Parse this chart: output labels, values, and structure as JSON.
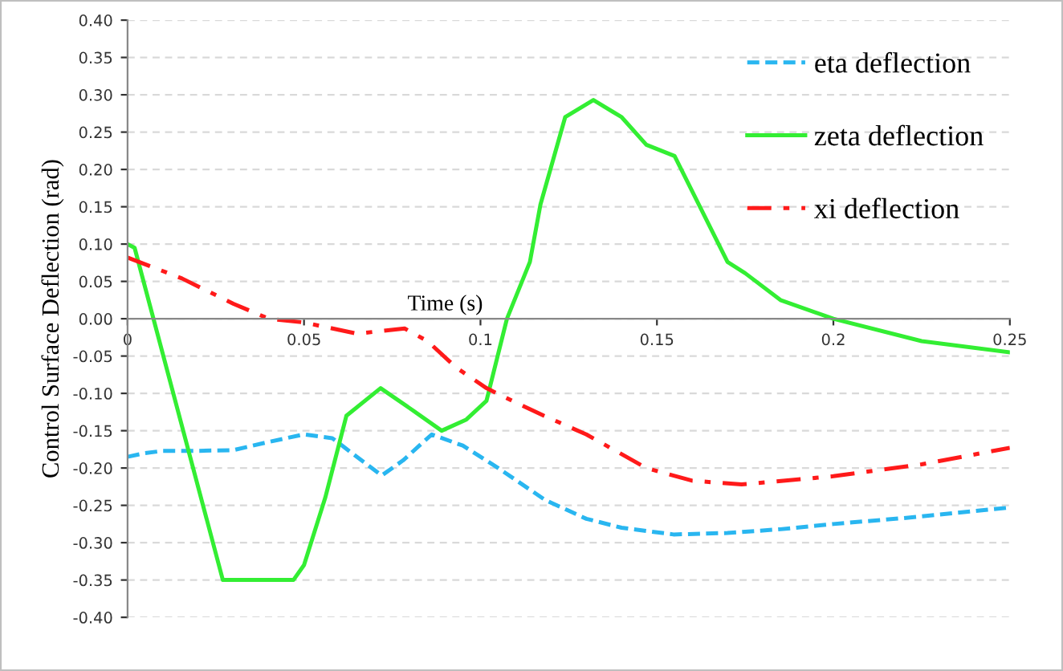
{
  "chart_data": {
    "type": "line",
    "xlabel": "Time (s)",
    "ylabel": "Control Surface Deflection (rad)",
    "xlim": [
      0,
      0.25
    ],
    "xticks": [
      0,
      0.05,
      {
        "value": 0.1,
        "label": "0.1"
      },
      0.15,
      {
        "value": 0.2,
        "label": "0.2"
      },
      0.25
    ],
    "ylim": [
      -0.4,
      0.4
    ],
    "yticks": [
      {
        "value": -0.4,
        "label": "-0.40"
      },
      {
        "value": -0.35,
        "label": "-0.35"
      },
      {
        "value": -0.3,
        "label": "-0.30"
      },
      {
        "value": -0.25,
        "label": "-0.25"
      },
      {
        "value": -0.2,
        "label": "-0.20"
      },
      {
        "value": -0.15,
        "label": "-0.15"
      },
      {
        "value": -0.1,
        "label": "-0.10"
      },
      {
        "value": -0.05,
        "label": "-0.05"
      },
      {
        "value": 0,
        "label": "0.00"
      },
      {
        "value": 0.05,
        "label": "0.05"
      },
      {
        "value": 0.1,
        "label": "0.10"
      },
      {
        "value": 0.15,
        "label": "0.15"
      },
      {
        "value": 0.2,
        "label": "0.20"
      },
      {
        "value": 0.25,
        "label": "0.25"
      },
      {
        "value": 0.3,
        "label": "0.30"
      },
      {
        "value": 0.35,
        "label": "0.35"
      },
      {
        "value": 0.4,
        "label": "0.40"
      }
    ],
    "grid": "y",
    "legend": "top right",
    "marker": "none",
    "series": [
      {
        "name": "eta deflection",
        "color": "#29b6f0",
        "line_style": "dashed",
        "x": [
          0,
          0.005,
          0.01,
          0.02,
          0.03,
          0.04,
          0.05,
          0.058,
          0.065,
          0.072,
          0.078,
          0.0862,
          0.095,
          0.105,
          0.1184,
          0.13,
          0.14,
          0.1547,
          0.17,
          0.185,
          0.2,
          0.22,
          0.25
        ],
        "values": [
          -0.185,
          -0.18,
          -0.177,
          -0.177,
          -0.176,
          -0.165,
          -0.155,
          -0.16,
          -0.185,
          -0.21,
          -0.19,
          -0.155,
          -0.17,
          -0.2,
          -0.243,
          -0.268,
          -0.28,
          -0.289,
          -0.287,
          -0.282,
          -0.275,
          -0.267,
          -0.253
        ]
      },
      {
        "name": "zeta deflection",
        "color": "#33ee33",
        "line_style": "solid",
        "x": [
          0,
          0.002,
          0.027,
          0.047,
          0.05,
          0.056,
          0.062,
          0.0717,
          0.08,
          0.089,
          0.096,
          0.1017,
          0.1075,
          0.114,
          0.117,
          0.124,
          0.132,
          0.14,
          0.147,
          0.155,
          0.17,
          0.175,
          0.185,
          0.2,
          0.225,
          0.25
        ],
        "values": [
          0.1,
          0.095,
          -0.35,
          -0.35,
          -0.33,
          -0.24,
          -0.13,
          -0.093,
          -0.12,
          -0.15,
          -0.135,
          -0.11,
          0.0,
          0.076,
          0.153,
          0.27,
          0.293,
          0.27,
          0.233,
          0.218,
          0.076,
          0.061,
          0.025,
          0.0,
          -0.03,
          -0.045
        ]
      },
      {
        "name": "xi deflection",
        "color": "#ff1a1a",
        "line_style": "dashdot",
        "x": [
          0,
          0.0154,
          0.03,
          0.04,
          0.05,
          0.065,
          0.0785,
          0.085,
          0.093,
          0.1017,
          0.109,
          0.118,
          0.13,
          0.147,
          0.16,
          0.174,
          0.2,
          0.225,
          0.25
        ],
        "values": [
          0.082,
          0.054,
          0.02,
          0.0,
          -0.005,
          -0.02,
          -0.013,
          -0.03,
          -0.065,
          -0.093,
          -0.11,
          -0.13,
          -0.155,
          -0.2,
          -0.217,
          -0.222,
          -0.211,
          -0.195,
          -0.173
        ]
      }
    ]
  }
}
